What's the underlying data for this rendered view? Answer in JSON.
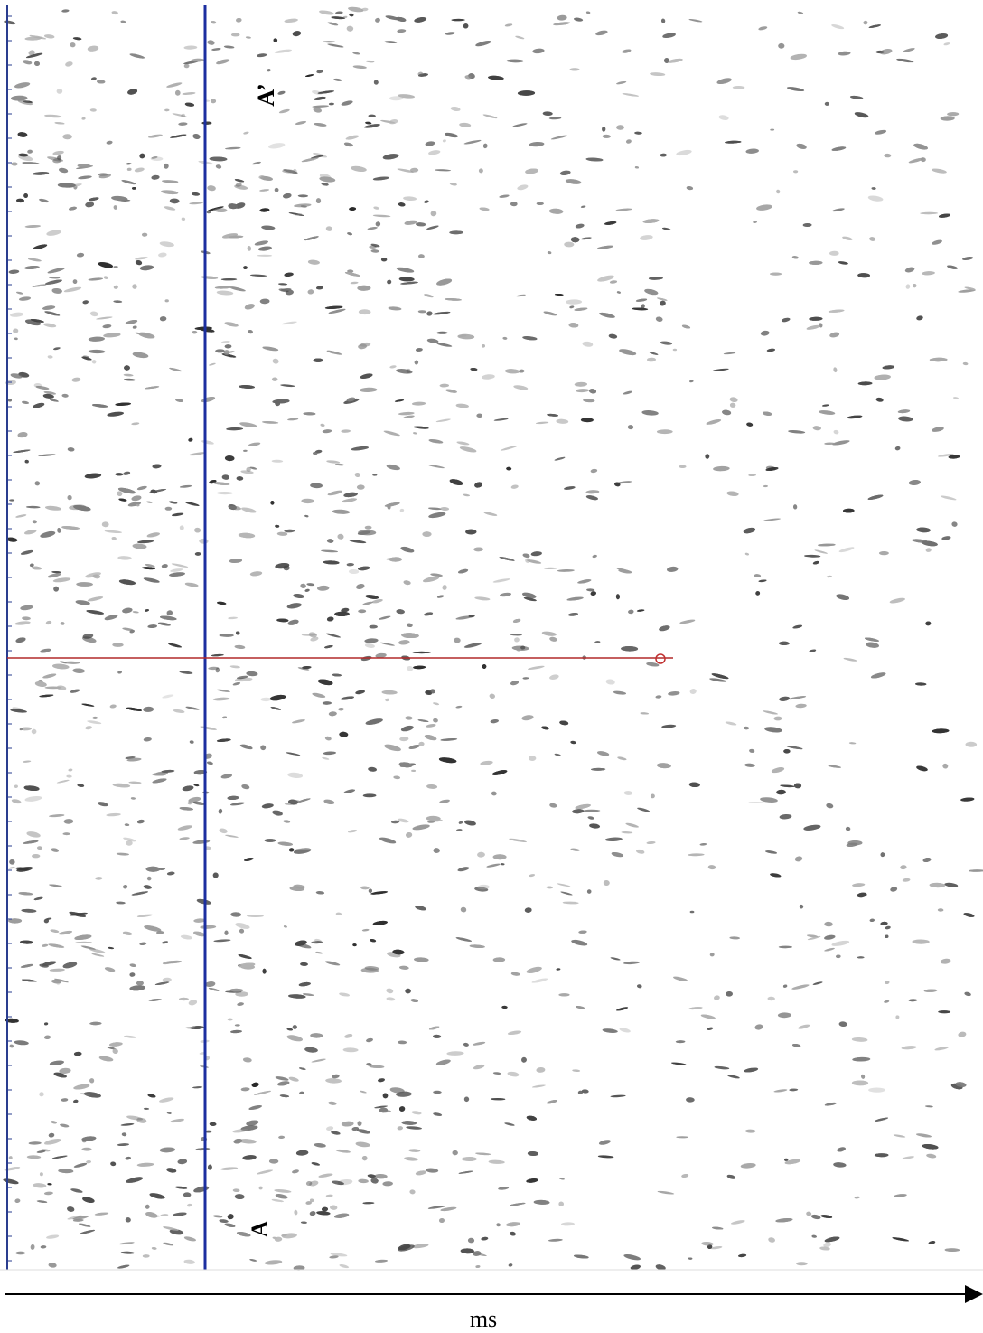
{
  "labels": {
    "a_prime": "A’",
    "a": "A",
    "axis": "ms"
  }
}
